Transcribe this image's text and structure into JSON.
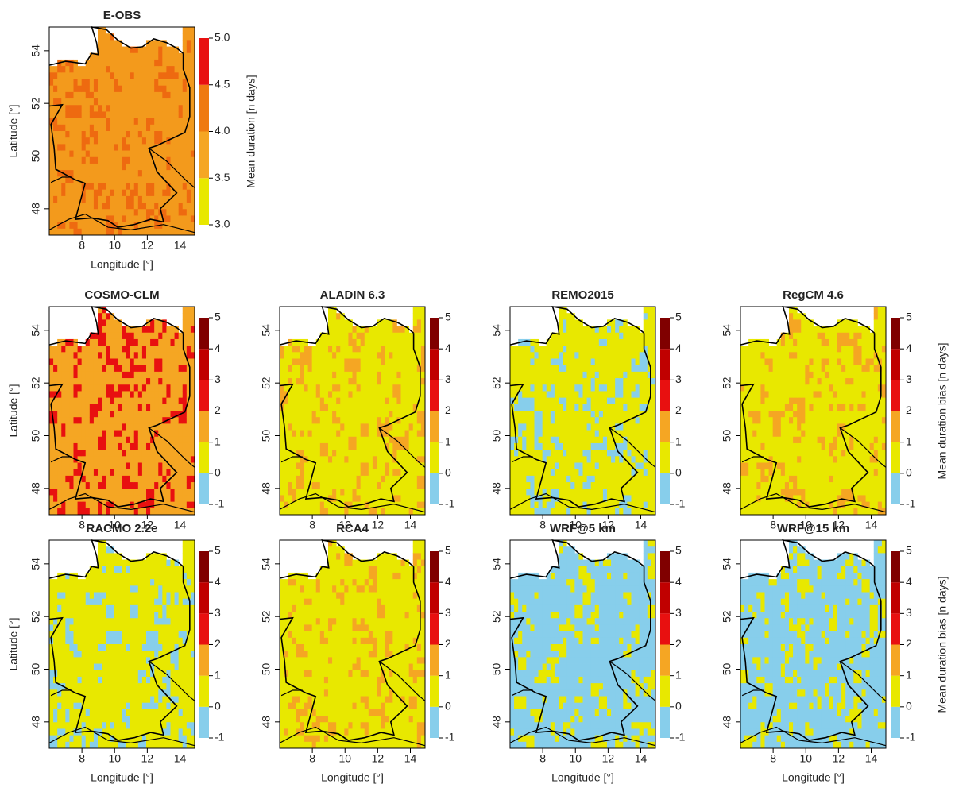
{
  "chart_data": [
    {
      "type": "map",
      "title": "E-OBS",
      "colors": [
        "#f39a1c",
        "#ee6a10"
      ],
      "xlim": [
        6,
        14.9
      ],
      "ylim": [
        47,
        54.9
      ],
      "xticks": [
        8,
        10,
        12,
        14
      ],
      "yticks": [
        48,
        50,
        52,
        54
      ],
      "xlabel": "Longitude [°]",
      "ylabel": "Latitude [°]",
      "colorbar": {
        "ticks": [
          {
            "value": 3,
            "label": "3.0"
          },
          3.5,
          {
            "value": 4,
            "label": "4.0"
          },
          4.5,
          {
            "value": 5,
            "label": "5.0"
          }
        ],
        "colors": [
          "#e8e800",
          "#f5a623",
          "#ef7a10",
          "#e81010"
        ],
        "label": "Mean duration [n days]"
      }
    },
    {
      "type": "map",
      "title": "COSMO-CLM",
      "colors": [
        "#f5a623",
        "#e81010"
      ],
      "xlim": [
        6,
        14.9
      ],
      "ylim": [
        47,
        54.9
      ],
      "xticks": [
        8,
        10,
        12,
        14
      ],
      "yticks": [
        48,
        50,
        52,
        54
      ],
      "ylabel": "Latitude [°]",
      "colorbar": {
        "ticks": [
          -1,
          0,
          1,
          2,
          3,
          4,
          5
        ],
        "colors": [
          "#87ceeb",
          "#e8e800",
          "#f5a623",
          "#e81010",
          "#c00000",
          "#800000"
        ]
      }
    },
    {
      "type": "map",
      "title": "ALADIN 6.3",
      "colors": [
        "#e8e800",
        "#f5a623"
      ],
      "xlim": [
        6,
        14.9
      ],
      "ylim": [
        47,
        54.9
      ],
      "xticks": [
        8,
        10,
        12,
        14
      ],
      "yticks": [
        48,
        50,
        52,
        54
      ],
      "colorbar": {
        "ticks": [
          -1,
          0,
          1,
          2,
          3,
          4,
          5
        ],
        "colors": [
          "#87ceeb",
          "#e8e800",
          "#f5a623",
          "#e81010",
          "#c00000",
          "#800000"
        ]
      }
    },
    {
      "type": "map",
      "title": "REMO2015",
      "colors": [
        "#e8e800",
        "#87ceeb"
      ],
      "xlim": [
        6,
        14.9
      ],
      "ylim": [
        47,
        54.9
      ],
      "xticks": [
        8,
        10,
        12,
        14
      ],
      "yticks": [
        48,
        50,
        52,
        54
      ],
      "colorbar": {
        "ticks": [
          -1,
          0,
          1,
          2,
          3,
          4,
          5
        ],
        "colors": [
          "#87ceeb",
          "#e8e800",
          "#f5a623",
          "#e81010",
          "#c00000",
          "#800000"
        ]
      }
    },
    {
      "type": "map",
      "title": "RegCM 4.6",
      "colors": [
        "#e8e800",
        "#f5a623"
      ],
      "xlim": [
        6,
        14.9
      ],
      "ylim": [
        47,
        54.9
      ],
      "xticks": [
        8,
        10,
        12,
        14
      ],
      "yticks": [
        48,
        50,
        52,
        54
      ],
      "colorbar": {
        "ticks": [
          -1,
          0,
          1,
          2,
          3,
          4,
          5
        ],
        "colors": [
          "#87ceeb",
          "#e8e800",
          "#f5a623",
          "#e81010",
          "#c00000",
          "#800000"
        ],
        "label": "Mean  duration bias [n days]"
      }
    },
    {
      "type": "map",
      "title": "RACMO 2.2e",
      "colors": [
        "#e8e800",
        "#87ceeb"
      ],
      "xlim": [
        6,
        14.9
      ],
      "ylim": [
        47,
        54.9
      ],
      "xticks": [
        8,
        10,
        12,
        14
      ],
      "yticks": [
        48,
        50,
        52,
        54
      ],
      "xlabel": "Longitude [°]",
      "ylabel": "Latitude [°]",
      "colorbar": {
        "ticks": [
          -1,
          0,
          1,
          2,
          3,
          4,
          5
        ],
        "colors": [
          "#87ceeb",
          "#e8e800",
          "#f5a623",
          "#e81010",
          "#c00000",
          "#800000"
        ]
      }
    },
    {
      "type": "map",
      "title": "RCA4",
      "colors": [
        "#e8e800",
        "#f5a623"
      ],
      "xlim": [
        6,
        14.9
      ],
      "ylim": [
        47,
        54.9
      ],
      "xticks": [
        8,
        10,
        12,
        14
      ],
      "yticks": [
        48,
        50,
        52,
        54
      ],
      "xlabel": "Longitude [°]",
      "colorbar": {
        "ticks": [
          -1,
          0,
          1,
          2,
          3,
          4,
          5
        ],
        "colors": [
          "#87ceeb",
          "#e8e800",
          "#f5a623",
          "#e81010",
          "#c00000",
          "#800000"
        ]
      }
    },
    {
      "type": "map",
      "title": "WRF@5 km",
      "colors": [
        "#87ceeb",
        "#e8e800"
      ],
      "xlim": [
        6,
        14.9
      ],
      "ylim": [
        47,
        54.9
      ],
      "xticks": [
        8,
        10,
        12,
        14
      ],
      "yticks": [
        48,
        50,
        52,
        54
      ],
      "xlabel": "Longitude [°]",
      "colorbar": {
        "ticks": [
          -1,
          0,
          1,
          2,
          3,
          4,
          5
        ],
        "colors": [
          "#87ceeb",
          "#e8e800",
          "#f5a623",
          "#e81010",
          "#c00000",
          "#800000"
        ]
      }
    },
    {
      "type": "map",
      "title": "WRF@15 km",
      "colors": [
        "#87ceeb",
        "#e8e800"
      ],
      "xlim": [
        6,
        14.9
      ],
      "ylim": [
        47,
        54.9
      ],
      "xticks": [
        8,
        10,
        12,
        14
      ],
      "yticks": [
        48,
        50,
        52,
        54
      ],
      "xlabel": "Longitude [°]",
      "colorbar": {
        "ticks": [
          -1,
          0,
          1,
          2,
          3,
          4,
          5
        ],
        "colors": [
          "#87ceeb",
          "#e8e800",
          "#f5a623",
          "#e81010",
          "#c00000",
          "#800000"
        ],
        "label": "Mean duration bias [n days]"
      }
    }
  ]
}
